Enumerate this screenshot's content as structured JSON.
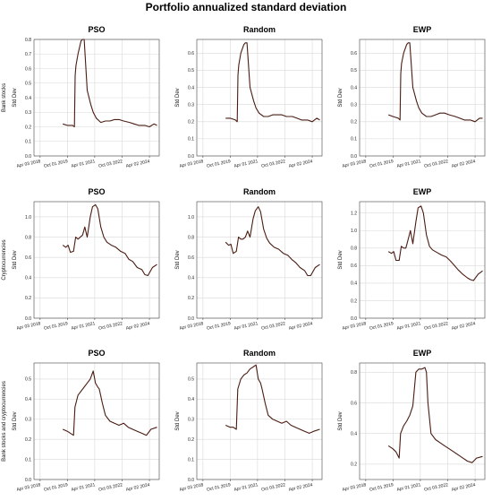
{
  "title": "Portfolio annualized standard deviation",
  "x_ticks": [
    "Apr 03 2018",
    "Oct 01 2019",
    "Apr 01 2021",
    "Oct 03 2022",
    "Apr 02 2024"
  ],
  "row_labels": [
    "Bank stocks",
    "Cryptocurrencies",
    "Bank stocks and cryptocurrencies"
  ],
  "colors": {
    "line": "#4a1c12",
    "grid": "#d9d9d9",
    "axis": "#444444"
  },
  "chart_data": [
    {
      "type": "line",
      "row": "Bank stocks",
      "title": "PSO",
      "ylabel": "Std Dev",
      "ylim": [
        0,
        0.8
      ],
      "yticks": [
        0.0,
        0.1,
        0.2,
        0.3,
        0.4,
        0.5,
        0.6,
        0.7,
        0.8
      ],
      "series": [
        {
          "x": [
            "2019-07-01",
            "2019-10-01",
            "2020-01-15",
            "2020-02-20",
            "2020-03-05",
            "2020-03-20",
            "2020-05-01",
            "2020-07-01",
            "2020-08-01",
            "2020-09-01",
            "2020-11-01",
            "2021-01-15",
            "2021-03-01",
            "2021-05-01",
            "2021-08-01",
            "2021-11-01",
            "2022-02-01",
            "2022-05-01",
            "2022-08-01",
            "2022-11-01",
            "2023-03-01",
            "2023-06-01",
            "2023-09-01",
            "2024-01-01",
            "2024-04-01",
            "2024-07-01",
            "2024-09-01"
          ],
          "y": [
            0.22,
            0.21,
            0.21,
            0.2,
            0.55,
            0.62,
            0.7,
            0.79,
            0.8,
            0.8,
            0.45,
            0.35,
            0.3,
            0.26,
            0.23,
            0.24,
            0.24,
            0.25,
            0.25,
            0.24,
            0.23,
            0.22,
            0.21,
            0.21,
            0.2,
            0.22,
            0.21
          ]
        }
      ]
    },
    {
      "type": "line",
      "row": "Bank stocks",
      "title": "Random",
      "ylabel": "Std Dev",
      "ylim": [
        0,
        0.68
      ],
      "yticks": [
        0.0,
        0.1,
        0.2,
        0.3,
        0.4,
        0.5,
        0.6
      ],
      "series": [
        {
          "x": [
            "2019-07-01",
            "2019-10-01",
            "2020-01-15",
            "2020-02-20",
            "2020-03-05",
            "2020-03-20",
            "2020-05-01",
            "2020-07-01",
            "2020-08-01",
            "2020-09-01",
            "2020-11-01",
            "2021-01-15",
            "2021-03-01",
            "2021-05-01",
            "2021-08-01",
            "2021-11-01",
            "2022-02-01",
            "2022-05-01",
            "2022-08-01",
            "2022-11-01",
            "2023-03-01",
            "2023-06-01",
            "2023-09-01",
            "2024-01-01",
            "2024-04-01",
            "2024-07-01",
            "2024-09-01"
          ],
          "y": [
            0.22,
            0.22,
            0.21,
            0.2,
            0.47,
            0.53,
            0.6,
            0.65,
            0.66,
            0.66,
            0.4,
            0.32,
            0.28,
            0.25,
            0.23,
            0.23,
            0.24,
            0.24,
            0.24,
            0.23,
            0.23,
            0.22,
            0.21,
            0.21,
            0.2,
            0.22,
            0.21
          ]
        }
      ]
    },
    {
      "type": "line",
      "row": "Bank stocks",
      "title": "EWP",
      "ylabel": "Std Dev",
      "ylim": [
        0,
        0.68
      ],
      "yticks": [
        0.0,
        0.1,
        0.2,
        0.3,
        0.4,
        0.5,
        0.6
      ],
      "series": [
        {
          "x": [
            "2019-07-01",
            "2019-10-01",
            "2020-01-15",
            "2020-02-20",
            "2020-03-05",
            "2020-03-20",
            "2020-05-01",
            "2020-07-01",
            "2020-08-01",
            "2020-09-01",
            "2020-11-01",
            "2021-01-15",
            "2021-03-01",
            "2021-05-01",
            "2021-08-01",
            "2021-11-01",
            "2022-02-01",
            "2022-05-01",
            "2022-08-01",
            "2022-11-01",
            "2023-03-01",
            "2023-06-01",
            "2023-09-01",
            "2024-01-01",
            "2024-04-01",
            "2024-07-01",
            "2024-09-01"
          ],
          "y": [
            0.24,
            0.23,
            0.22,
            0.21,
            0.48,
            0.54,
            0.6,
            0.65,
            0.66,
            0.66,
            0.4,
            0.32,
            0.28,
            0.25,
            0.23,
            0.23,
            0.24,
            0.25,
            0.25,
            0.24,
            0.23,
            0.22,
            0.21,
            0.21,
            0.2,
            0.22,
            0.22
          ]
        }
      ]
    },
    {
      "type": "line",
      "row": "Cryptocurrencies",
      "title": "PSO",
      "ylabel": "Std Dev",
      "ylim": [
        0,
        1.15
      ],
      "yticks": [
        0.0,
        0.2,
        0.4,
        0.6,
        0.8,
        1.0
      ],
      "series": [
        {
          "x": [
            "2019-07-01",
            "2019-09-01",
            "2019-10-15",
            "2019-12-01",
            "2020-02-01",
            "2020-03-15",
            "2020-05-01",
            "2020-06-15",
            "2020-08-01",
            "2020-09-15",
            "2020-11-01",
            "2021-01-01",
            "2021-02-15",
            "2021-04-15",
            "2021-06-01",
            "2021-08-01",
            "2021-10-01",
            "2021-12-01",
            "2022-03-01",
            "2022-06-01",
            "2022-09-01",
            "2022-12-01",
            "2023-02-15",
            "2023-05-01",
            "2023-08-01",
            "2023-11-01",
            "2024-01-01",
            "2024-03-01",
            "2024-06-01",
            "2024-09-01"
          ],
          "y": [
            0.72,
            0.7,
            0.72,
            0.65,
            0.66,
            0.8,
            0.78,
            0.8,
            0.82,
            0.9,
            0.8,
            1.0,
            1.1,
            1.12,
            1.08,
            0.9,
            0.8,
            0.75,
            0.72,
            0.7,
            0.66,
            0.64,
            0.58,
            0.56,
            0.5,
            0.48,
            0.43,
            0.42,
            0.5,
            0.53
          ]
        }
      ]
    },
    {
      "type": "line",
      "row": "Cryptocurrencies",
      "title": "Random",
      "ylabel": "Std Dev",
      "ylim": [
        0,
        1.15
      ],
      "yticks": [
        0.0,
        0.2,
        0.4,
        0.6,
        0.8,
        1.0
      ],
      "series": [
        {
          "x": [
            "2019-07-01",
            "2019-09-01",
            "2019-10-15",
            "2019-12-01",
            "2020-02-01",
            "2020-03-15",
            "2020-05-01",
            "2020-06-15",
            "2020-08-01",
            "2020-09-15",
            "2020-11-01",
            "2021-01-01",
            "2021-02-15",
            "2021-04-15",
            "2021-06-01",
            "2021-08-01",
            "2021-10-01",
            "2021-12-01",
            "2022-03-01",
            "2022-06-01",
            "2022-09-01",
            "2022-12-01",
            "2023-02-15",
            "2023-05-01",
            "2023-08-01",
            "2023-11-01",
            "2024-01-01",
            "2024-03-01",
            "2024-06-01",
            "2024-09-01"
          ],
          "y": [
            0.75,
            0.72,
            0.73,
            0.64,
            0.66,
            0.8,
            0.78,
            0.78,
            0.8,
            0.86,
            0.8,
            0.98,
            1.06,
            1.1,
            1.05,
            0.88,
            0.79,
            0.74,
            0.7,
            0.68,
            0.64,
            0.62,
            0.58,
            0.55,
            0.5,
            0.47,
            0.42,
            0.42,
            0.5,
            0.53
          ]
        }
      ]
    },
    {
      "type": "line",
      "row": "Cryptocurrencies",
      "title": "EWP",
      "ylabel": "Std Dev",
      "ylim": [
        0,
        1.33
      ],
      "yticks": [
        0.0,
        0.2,
        0.4,
        0.6,
        0.8,
        1.0,
        1.2
      ],
      "series": [
        {
          "x": [
            "2019-07-01",
            "2019-09-01",
            "2019-10-15",
            "2019-12-01",
            "2020-02-01",
            "2020-03-15",
            "2020-05-01",
            "2020-06-15",
            "2020-08-01",
            "2020-09-15",
            "2020-11-01",
            "2021-01-01",
            "2021-02-15",
            "2021-04-15",
            "2021-06-01",
            "2021-08-01",
            "2021-10-01",
            "2021-12-01",
            "2022-03-01",
            "2022-06-01",
            "2022-09-01",
            "2022-12-01",
            "2023-02-15",
            "2023-05-01",
            "2023-08-01",
            "2023-11-01",
            "2024-01-01",
            "2024-03-01",
            "2024-06-01",
            "2024-09-01"
          ],
          "y": [
            0.76,
            0.74,
            0.76,
            0.66,
            0.66,
            0.82,
            0.8,
            0.8,
            0.9,
            1.0,
            0.85,
            1.1,
            1.26,
            1.28,
            1.2,
            0.95,
            0.82,
            0.78,
            0.75,
            0.72,
            0.7,
            0.65,
            0.6,
            0.55,
            0.5,
            0.46,
            0.44,
            0.43,
            0.5,
            0.54
          ]
        }
      ]
    },
    {
      "type": "line",
      "row": "Bank stocks and cryptocurrencies",
      "title": "PSO",
      "ylabel": "Std Dev",
      "ylim": [
        0,
        0.58
      ],
      "yticks": [
        0.0,
        0.1,
        0.2,
        0.3,
        0.4,
        0.5
      ],
      "series": [
        {
          "x": [
            "2019-07-01",
            "2019-10-01",
            "2019-12-01",
            "2020-02-01",
            "2020-03-01",
            "2020-05-01",
            "2020-07-01",
            "2020-09-01",
            "2020-11-01",
            "2021-01-01",
            "2021-03-01",
            "2021-04-15",
            "2021-06-01",
            "2021-07-01",
            "2021-09-01",
            "2021-11-01",
            "2022-02-01",
            "2022-05-01",
            "2022-08-01",
            "2022-11-01",
            "2023-02-01",
            "2023-05-01",
            "2023-08-01",
            "2023-11-01",
            "2024-02-01",
            "2024-05-01",
            "2024-09-01"
          ],
          "y": [
            0.25,
            0.24,
            0.23,
            0.22,
            0.36,
            0.42,
            0.44,
            0.46,
            0.48,
            0.5,
            0.54,
            0.48,
            0.46,
            0.45,
            0.38,
            0.32,
            0.29,
            0.28,
            0.27,
            0.28,
            0.26,
            0.25,
            0.24,
            0.23,
            0.22,
            0.25,
            0.26
          ]
        }
      ]
    },
    {
      "type": "line",
      "row": "Bank stocks and cryptocurrencies",
      "title": "Random",
      "ylabel": "Std Dev",
      "ylim": [
        0,
        0.58
      ],
      "yticks": [
        0.0,
        0.1,
        0.2,
        0.3,
        0.4,
        0.5
      ],
      "series": [
        {
          "x": [
            "2019-07-01",
            "2019-10-01",
            "2019-12-01",
            "2020-02-01",
            "2020-03-01",
            "2020-05-01",
            "2020-07-01",
            "2020-09-01",
            "2020-11-01",
            "2021-01-01",
            "2021-03-01",
            "2021-04-15",
            "2021-06-01",
            "2021-07-01",
            "2021-09-01",
            "2021-11-01",
            "2022-02-01",
            "2022-05-01",
            "2022-08-01",
            "2022-11-01",
            "2023-02-01",
            "2023-05-01",
            "2023-08-01",
            "2023-11-01",
            "2024-02-01",
            "2024-05-01",
            "2024-09-01"
          ],
          "y": [
            0.27,
            0.26,
            0.26,
            0.25,
            0.45,
            0.5,
            0.52,
            0.53,
            0.55,
            0.56,
            0.57,
            0.5,
            0.48,
            0.45,
            0.38,
            0.32,
            0.3,
            0.29,
            0.28,
            0.29,
            0.27,
            0.26,
            0.25,
            0.24,
            0.23,
            0.24,
            0.25
          ]
        }
      ]
    },
    {
      "type": "line",
      "row": "Bank stocks and cryptocurrencies",
      "title": "EWP",
      "ylabel": "Std Dev",
      "ylim": [
        0.1,
        0.86
      ],
      "yticks": [
        0.2,
        0.4,
        0.6,
        0.8
      ],
      "series": [
        {
          "x": [
            "2019-07-01",
            "2019-10-01",
            "2019-12-01",
            "2020-02-01",
            "2020-03-01",
            "2020-05-01",
            "2020-07-01",
            "2020-09-01",
            "2020-11-01",
            "2021-01-01",
            "2021-03-01",
            "2021-05-01",
            "2021-07-01",
            "2021-08-01",
            "2021-09-01",
            "2021-11-01",
            "2022-02-01",
            "2022-05-01",
            "2022-08-01",
            "2022-11-01",
            "2023-02-01",
            "2023-05-01",
            "2023-08-01",
            "2023-11-01",
            "2024-02-01",
            "2024-05-01",
            "2024-09-01"
          ],
          "y": [
            0.32,
            0.3,
            0.28,
            0.24,
            0.4,
            0.45,
            0.48,
            0.52,
            0.58,
            0.8,
            0.82,
            0.82,
            0.83,
            0.8,
            0.6,
            0.4,
            0.36,
            0.34,
            0.32,
            0.3,
            0.28,
            0.26,
            0.24,
            0.22,
            0.21,
            0.24,
            0.25
          ]
        }
      ]
    }
  ]
}
